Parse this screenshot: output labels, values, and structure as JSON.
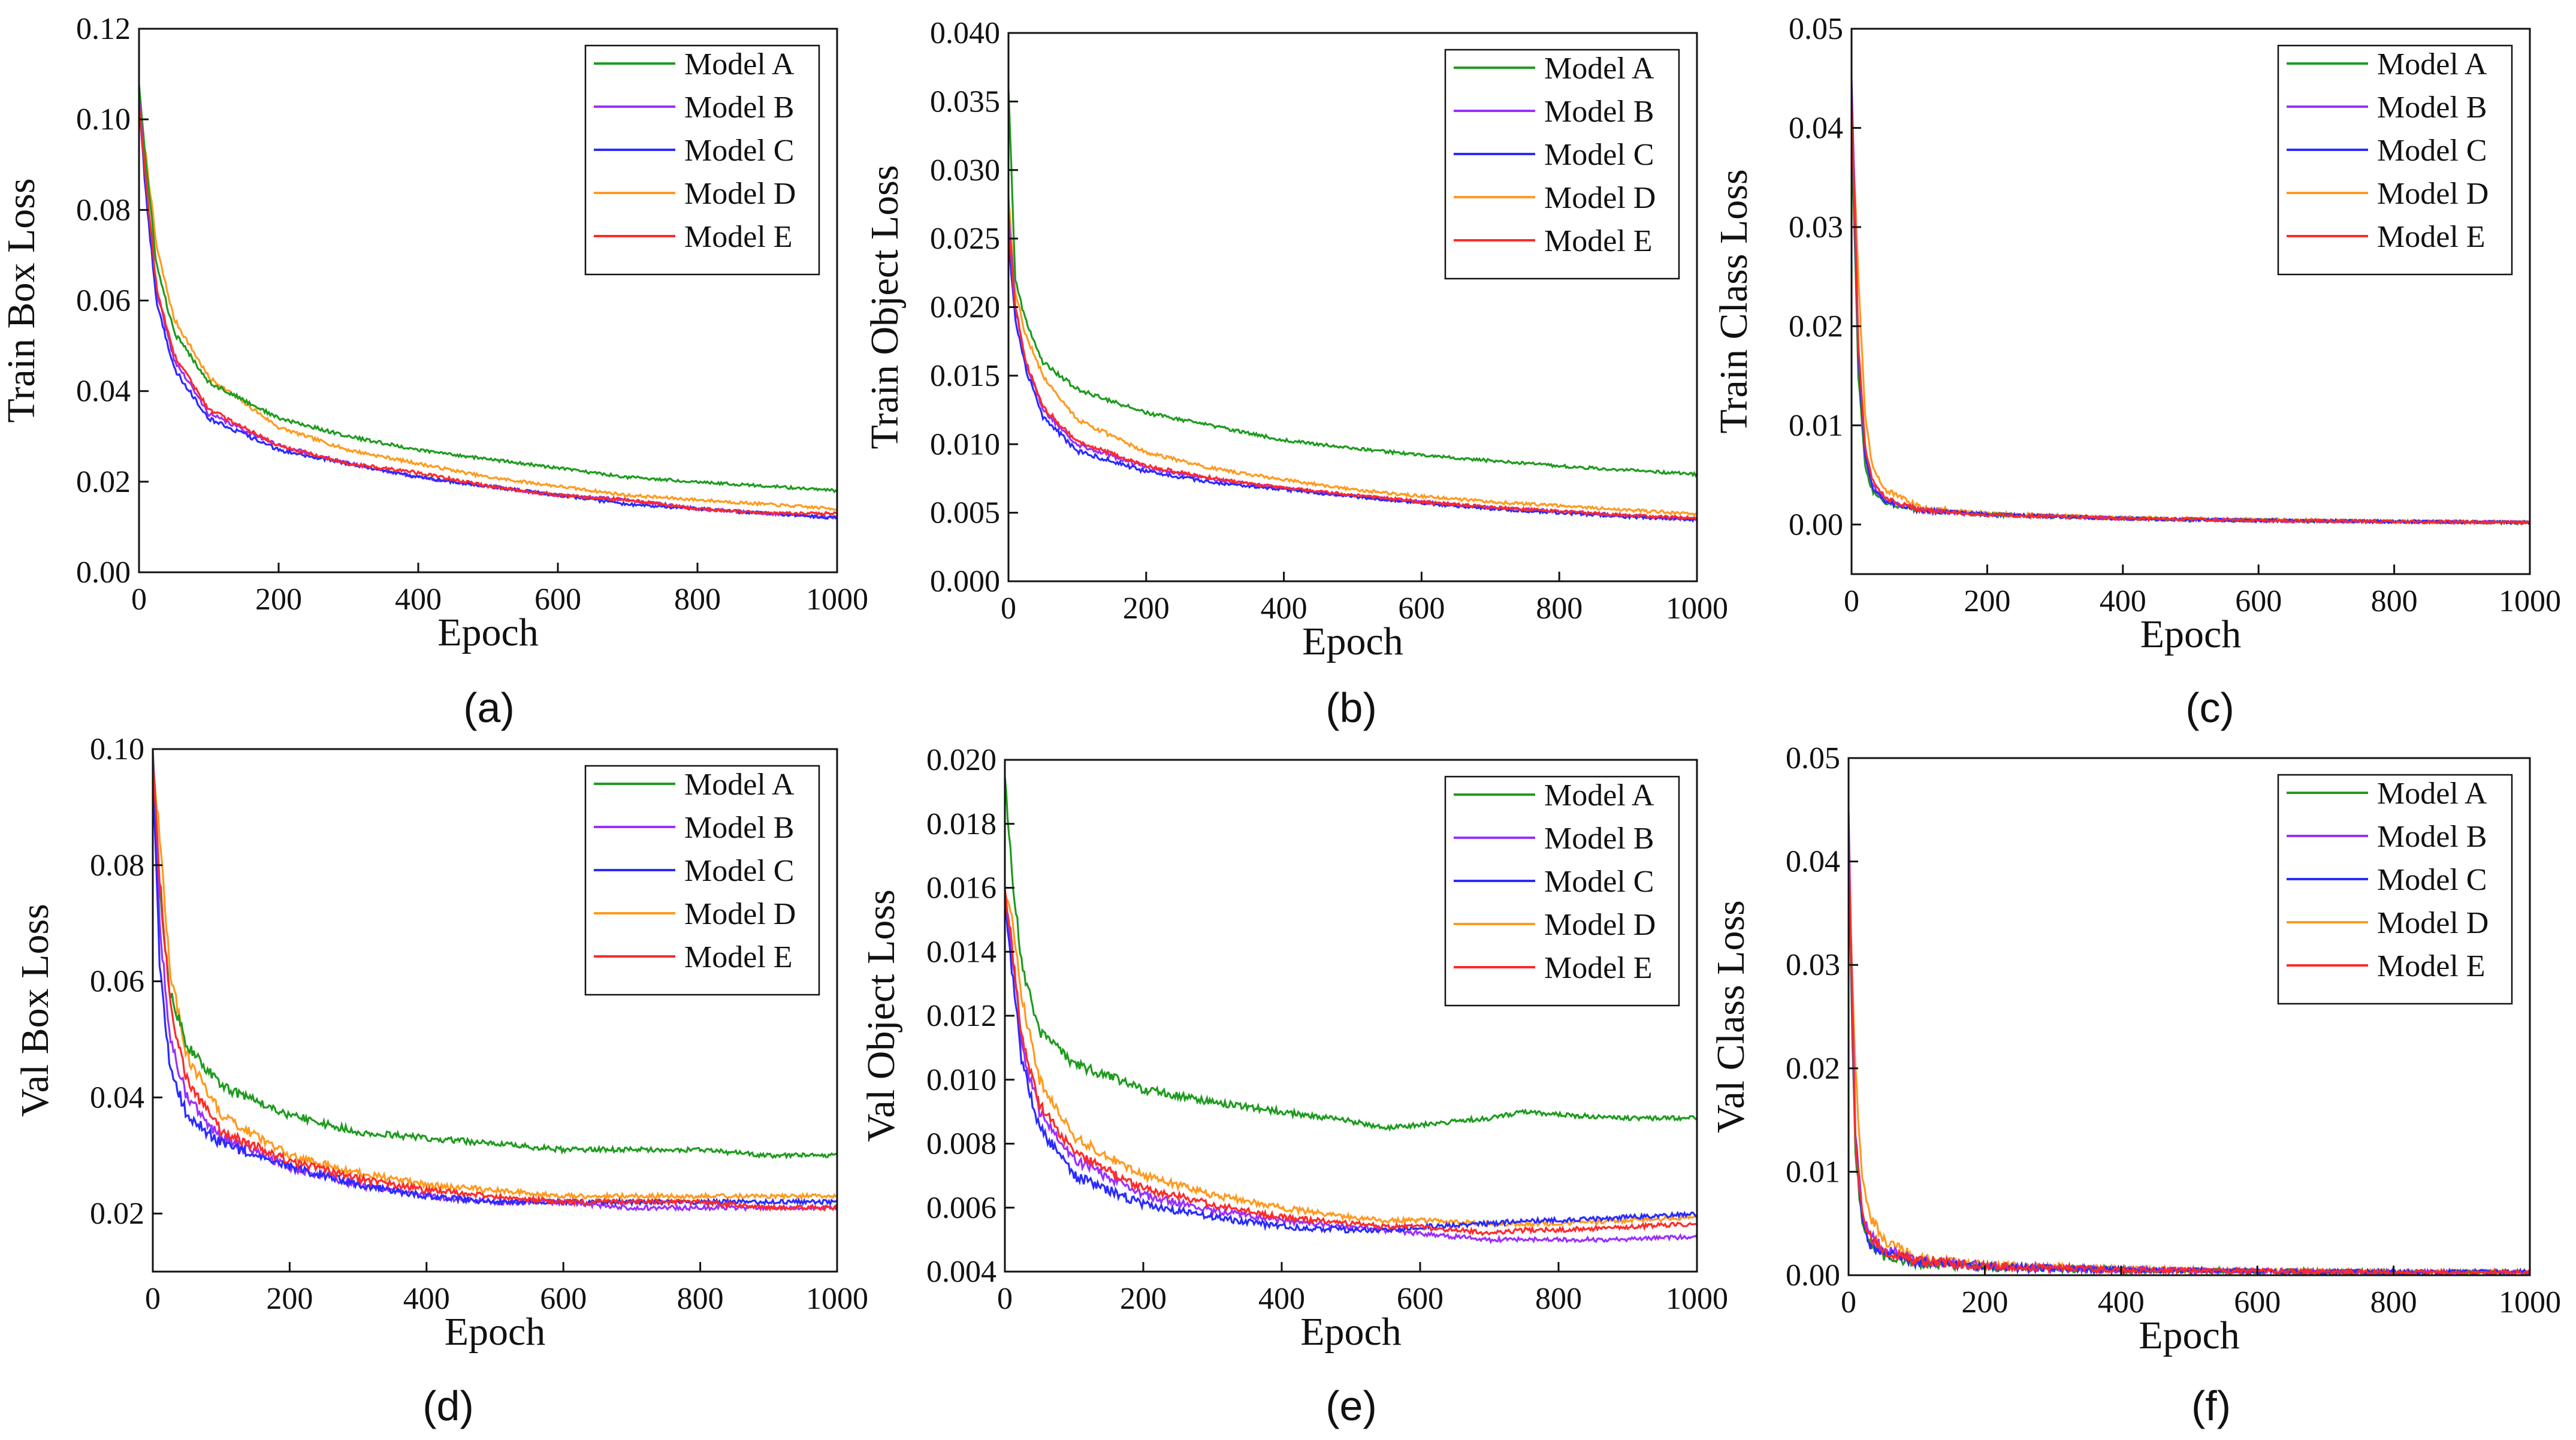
{
  "figure": {
    "legend_placement": "top-right",
    "grid": false
  },
  "colors": {
    "Model A": "#1f9b1f",
    "Model B": "#9b30ff",
    "Model C": "#2b2bff",
    "Model D": "#ff9a1f",
    "Model E": "#ff2a2a"
  },
  "chart_data": [
    {
      "type": "line",
      "panel": "(a)",
      "xlabel": "Epoch",
      "ylabel": "Train Box Loss",
      "xlim": [
        0,
        1000
      ],
      "ylim": [
        0,
        0.12
      ],
      "xticks": [
        "0",
        "200",
        "400",
        "600",
        "800",
        "1000"
      ],
      "yticks": [
        "0.00",
        "0.02",
        "0.04",
        "0.06",
        "0.08",
        "0.10",
        "0.12"
      ],
      "x": [
        0,
        10,
        25,
        50,
        100,
        200,
        300,
        400,
        500,
        600,
        700,
        800,
        900,
        1000
      ],
      "series": [
        {
          "name": "Model A",
          "values": [
            0.108,
            0.09,
            0.068,
            0.053,
            0.042,
            0.034,
            0.03,
            0.027,
            0.025,
            0.023,
            0.021,
            0.02,
            0.019,
            0.018
          ]
        },
        {
          "name": "Model B",
          "values": [
            0.105,
            0.085,
            0.062,
            0.047,
            0.035,
            0.028,
            0.024,
            0.021,
            0.019,
            0.017,
            0.016,
            0.014,
            0.013,
            0.012
          ]
        },
        {
          "name": "Model C",
          "values": [
            0.104,
            0.083,
            0.06,
            0.045,
            0.034,
            0.027,
            0.024,
            0.021,
            0.019,
            0.017,
            0.015,
            0.014,
            0.013,
            0.012
          ]
        },
        {
          "name": "Model D",
          "values": [
            0.103,
            0.092,
            0.072,
            0.056,
            0.043,
            0.032,
            0.027,
            0.024,
            0.021,
            0.019,
            0.017,
            0.016,
            0.015,
            0.014
          ]
        },
        {
          "name": "Model E",
          "values": [
            0.104,
            0.086,
            0.063,
            0.048,
            0.036,
            0.028,
            0.024,
            0.022,
            0.019,
            0.017,
            0.016,
            0.014,
            0.013,
            0.013
          ]
        }
      ]
    },
    {
      "type": "line",
      "panel": "(b)",
      "xlabel": "Epoch",
      "ylabel": "Train Object Loss",
      "xlim": [
        0,
        1000
      ],
      "ylim": [
        0,
        0.04
      ],
      "xticks": [
        "0",
        "200",
        "400",
        "600",
        "800",
        "1000"
      ],
      "yticks": [
        "0.000",
        "0.005",
        "0.010",
        "0.015",
        "0.020",
        "0.025",
        "0.030",
        "0.035",
        "0.040"
      ],
      "x": [
        0,
        10,
        25,
        50,
        100,
        200,
        300,
        400,
        500,
        600,
        700,
        800,
        900,
        1000
      ],
      "series": [
        {
          "name": "Model A",
          "values": [
            0.036,
            0.022,
            0.019,
            0.016,
            0.014,
            0.0123,
            0.0113,
            0.0103,
            0.0097,
            0.0092,
            0.0088,
            0.0084,
            0.0081,
            0.0078
          ]
        },
        {
          "name": "Model B",
          "values": [
            0.027,
            0.02,
            0.016,
            0.0125,
            0.01,
            0.0083,
            0.0074,
            0.0068,
            0.0062,
            0.0058,
            0.0054,
            0.0051,
            0.0048,
            0.0045
          ]
        },
        {
          "name": "Model C",
          "values": [
            0.025,
            0.019,
            0.0155,
            0.012,
            0.0095,
            0.008,
            0.0072,
            0.0067,
            0.0062,
            0.0057,
            0.0053,
            0.005,
            0.0047,
            0.0045
          ]
        },
        {
          "name": "Model D",
          "values": [
            0.028,
            0.021,
            0.018,
            0.015,
            0.0118,
            0.0094,
            0.0082,
            0.0074,
            0.0067,
            0.0062,
            0.0058,
            0.0055,
            0.0052,
            0.0049
          ]
        },
        {
          "name": "Model E",
          "values": [
            0.026,
            0.02,
            0.016,
            0.0127,
            0.0102,
            0.0084,
            0.0075,
            0.0068,
            0.0063,
            0.0058,
            0.0054,
            0.0051,
            0.0048,
            0.0046
          ]
        }
      ]
    },
    {
      "type": "line",
      "panel": "(c)",
      "xlabel": "Epoch",
      "ylabel": "Train Class Loss",
      "xlim": [
        0,
        1000
      ],
      "ylim": [
        -0.005,
        0.05
      ],
      "xticks": [
        "0",
        "200",
        "400",
        "600",
        "800",
        "1000"
      ],
      "yticks": [
        "0.00",
        "0.01",
        "0.02",
        "0.03",
        "0.04",
        "0.05"
      ],
      "x": [
        0,
        5,
        10,
        20,
        30,
        50,
        100,
        200,
        400,
        600,
        800,
        1000
      ],
      "series": [
        {
          "name": "Model A",
          "values": [
            0.04,
            0.028,
            0.015,
            0.006,
            0.0035,
            0.0022,
            0.0014,
            0.001,
            0.0006,
            0.0004,
            0.0003,
            0.0002
          ]
        },
        {
          "name": "Model B",
          "values": [
            0.045,
            0.032,
            0.018,
            0.007,
            0.004,
            0.0024,
            0.0015,
            0.001,
            0.0006,
            0.0004,
            0.0003,
            0.0002
          ]
        },
        {
          "name": "Model C",
          "values": [
            0.044,
            0.03,
            0.017,
            0.007,
            0.0038,
            0.0023,
            0.0014,
            0.001,
            0.0006,
            0.0004,
            0.0003,
            0.0002
          ]
        },
        {
          "name": "Model D",
          "values": [
            0.038,
            0.034,
            0.025,
            0.011,
            0.006,
            0.0035,
            0.0018,
            0.0011,
            0.0007,
            0.0005,
            0.0003,
            0.0002
          ]
        },
        {
          "name": "Model E",
          "values": [
            0.043,
            0.031,
            0.018,
            0.008,
            0.0045,
            0.0026,
            0.0015,
            0.001,
            0.0006,
            0.0004,
            0.0003,
            0.0002
          ]
        }
      ]
    },
    {
      "type": "line",
      "panel": "(d)",
      "xlabel": "Epoch",
      "ylabel": "Val Box Loss",
      "xlim": [
        0,
        1000
      ],
      "ylim": [
        0.01,
        0.1
      ],
      "xticks": [
        "0",
        "200",
        "400",
        "600",
        "800",
        "1000"
      ],
      "yticks": [
        "0.02",
        "0.04",
        "0.06",
        "0.08",
        "0.10"
      ],
      "x": [
        0,
        10,
        25,
        50,
        100,
        200,
        300,
        400,
        500,
        600,
        700,
        800,
        900,
        1000
      ],
      "series": [
        {
          "name": "Model A",
          "values": [
            0.1,
            0.075,
            0.058,
            0.049,
            0.042,
            0.037,
            0.034,
            0.033,
            0.032,
            0.031,
            0.031,
            0.031,
            0.03,
            0.03
          ]
        },
        {
          "name": "Model B",
          "values": [
            0.1,
            0.07,
            0.05,
            0.04,
            0.033,
            0.028,
            0.025,
            0.023,
            0.022,
            0.022,
            0.021,
            0.021,
            0.021,
            0.021
          ]
        },
        {
          "name": "Model C",
          "values": [
            0.095,
            0.063,
            0.045,
            0.037,
            0.032,
            0.028,
            0.025,
            0.023,
            0.022,
            0.022,
            0.022,
            0.022,
            0.022,
            0.022
          ]
        },
        {
          "name": "Model D",
          "values": [
            0.099,
            0.085,
            0.062,
            0.047,
            0.037,
            0.03,
            0.027,
            0.025,
            0.024,
            0.023,
            0.023,
            0.023,
            0.023,
            0.023
          ]
        },
        {
          "name": "Model E",
          "values": [
            0.098,
            0.078,
            0.056,
            0.043,
            0.034,
            0.029,
            0.026,
            0.024,
            0.023,
            0.022,
            0.022,
            0.022,
            0.021,
            0.021
          ]
        }
      ]
    },
    {
      "type": "line",
      "panel": "(e)",
      "xlabel": "Epoch",
      "ylabel": "Val Object Loss",
      "xlim": [
        0,
        1000
      ],
      "ylim": [
        0.004,
        0.02
      ],
      "xticks": [
        "0",
        "200",
        "400",
        "600",
        "800",
        "1000"
      ],
      "yticks": [
        "0.004",
        "0.006",
        "0.008",
        "0.010",
        "0.012",
        "0.014",
        "0.016",
        "0.018",
        "0.020"
      ],
      "x": [
        0,
        10,
        25,
        50,
        100,
        200,
        300,
        400,
        500,
        550,
        600,
        700,
        750,
        800,
        900,
        1000
      ],
      "series": [
        {
          "name": "Model A",
          "values": [
            0.0195,
            0.0165,
            0.0135,
            0.0115,
            0.0105,
            0.0097,
            0.0093,
            0.009,
            0.0087,
            0.0085,
            0.0086,
            0.0088,
            0.009,
            0.0089,
            0.0088,
            0.0088
          ]
        },
        {
          "name": "Model B",
          "values": [
            0.0158,
            0.014,
            0.011,
            0.009,
            0.0075,
            0.0064,
            0.0059,
            0.0056,
            0.0054,
            0.0053,
            0.0052,
            0.005,
            0.005,
            0.005,
            0.005,
            0.0051
          ]
        },
        {
          "name": "Model C",
          "values": [
            0.0155,
            0.0135,
            0.0105,
            0.0085,
            0.007,
            0.0061,
            0.0057,
            0.0054,
            0.0053,
            0.0053,
            0.0054,
            0.0055,
            0.0056,
            0.0056,
            0.0057,
            0.0058
          ]
        },
        {
          "name": "Model D",
          "values": [
            0.016,
            0.015,
            0.0125,
            0.01,
            0.0082,
            0.007,
            0.0064,
            0.006,
            0.0057,
            0.0056,
            0.0056,
            0.0055,
            0.0055,
            0.0055,
            0.0056,
            0.0057
          ]
        },
        {
          "name": "Model E",
          "values": [
            0.016,
            0.0142,
            0.0112,
            0.0092,
            0.0077,
            0.0066,
            0.0061,
            0.0057,
            0.0055,
            0.0054,
            0.0054,
            0.0052,
            0.0053,
            0.0053,
            0.0054,
            0.0055
          ]
        }
      ]
    },
    {
      "type": "line",
      "panel": "(f)",
      "xlabel": "Epoch",
      "ylabel": "Val Class Loss",
      "xlim": [
        0,
        1000
      ],
      "ylim": [
        0,
        0.05
      ],
      "xticks": [
        "0",
        "200",
        "400",
        "600",
        "800",
        "1000"
      ],
      "yticks": [
        "0.00",
        "0.01",
        "0.02",
        "0.03",
        "0.04",
        "0.05"
      ],
      "x": [
        0,
        5,
        10,
        20,
        30,
        50,
        100,
        200,
        400,
        600,
        800,
        1000
      ],
      "series": [
        {
          "name": "Model A",
          "values": [
            0.04,
            0.025,
            0.012,
            0.005,
            0.003,
            0.002,
            0.0012,
            0.0008,
            0.0005,
            0.0004,
            0.0003,
            0.0003
          ]
        },
        {
          "name": "Model B",
          "values": [
            0.045,
            0.028,
            0.014,
            0.006,
            0.004,
            0.0025,
            0.0014,
            0.0009,
            0.0005,
            0.0004,
            0.0003,
            0.0003
          ]
        },
        {
          "name": "Model C",
          "values": [
            0.042,
            0.026,
            0.013,
            0.005,
            0.003,
            0.0022,
            0.0013,
            0.0008,
            0.0005,
            0.0004,
            0.0003,
            0.0003
          ]
        },
        {
          "name": "Model D",
          "values": [
            0.038,
            0.03,
            0.02,
            0.009,
            0.006,
            0.0035,
            0.0016,
            0.001,
            0.0006,
            0.0004,
            0.0003,
            0.0003
          ]
        },
        {
          "name": "Model E",
          "values": [
            0.043,
            0.027,
            0.013,
            0.006,
            0.004,
            0.0024,
            0.0014,
            0.0009,
            0.0005,
            0.0004,
            0.0003,
            0.0003
          ]
        }
      ]
    }
  ]
}
